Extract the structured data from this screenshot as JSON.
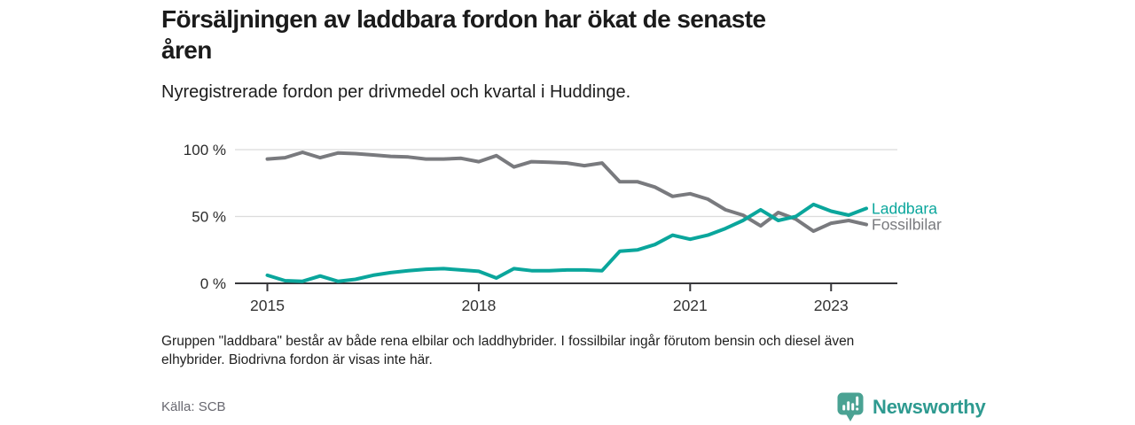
{
  "header": {
    "title_line1": "Försäljningen av laddbara fordon har ökat de senaste",
    "title_line2": "åren",
    "subtitle": "Nyregistrerade fordon per drivmedel och kvartal i Huddinge."
  },
  "chart_data": {
    "type": "line",
    "title": "Nyregistrerade fordon per drivmedel och kvartal i Huddinge",
    "x_start_quarter": "2015 Q1",
    "x_end_quarter": "2023 Q3",
    "points_per_year": 4,
    "n_points": 35,
    "x_axis": {
      "ticks": [
        {
          "index": 0,
          "label": "2015"
        },
        {
          "index": 12,
          "label": "2018"
        },
        {
          "index": 24,
          "label": "2021"
        },
        {
          "index": 32,
          "label": "2023"
        }
      ]
    },
    "y_axis": {
      "ticks": [
        {
          "value": 100,
          "label": "100 %"
        },
        {
          "value": 50,
          "label": "50 %"
        },
        {
          "value": 0,
          "label": "0 %"
        }
      ],
      "ylim": [
        0,
        100
      ],
      "unit": "%"
    },
    "grid": "horizontal-only",
    "legend_position": "right-of-line-end",
    "series": [
      {
        "name": "Laddbara",
        "color": "#0aa69c",
        "values": [
          6,
          2,
          1.5,
          5.5,
          1.5,
          3,
          6,
          8,
          9.5,
          10.5,
          11,
          10,
          9,
          4,
          11,
          9.5,
          9.5,
          10,
          10,
          9.5,
          24,
          25,
          29,
          36,
          33,
          36,
          41,
          47,
          55,
          47,
          50,
          59,
          54,
          51,
          56
        ]
      },
      {
        "name": "Fossilbilar",
        "color": "#797a7e",
        "values": [
          93,
          94,
          98,
          94,
          97.5,
          97,
          96,
          95,
          94.5,
          93,
          93,
          93.5,
          91,
          95.5,
          87,
          91,
          90.5,
          90,
          88,
          90,
          76,
          76,
          72,
          65,
          67,
          63,
          55,
          51,
          43,
          53,
          48,
          39,
          45,
          47,
          44
        ]
      }
    ],
    "colors": {
      "gridline": "#dcdcdc",
      "axis": "#37373b"
    }
  },
  "footnote": {
    "line1": "Gruppen \"laddbara\" består av både rena elbilar och laddhybrider. I fossilbilar ingår förutom bensin och diesel även",
    "line2": "elhybrider. Biodrivna fordon är visas inte här."
  },
  "source": "Källa: SCB",
  "logo": {
    "text": "Newsworthy",
    "icon": "bar-chart-speech-bubble-icon",
    "icon_color": "#4aa293",
    "text_color": "#2e9a90"
  }
}
